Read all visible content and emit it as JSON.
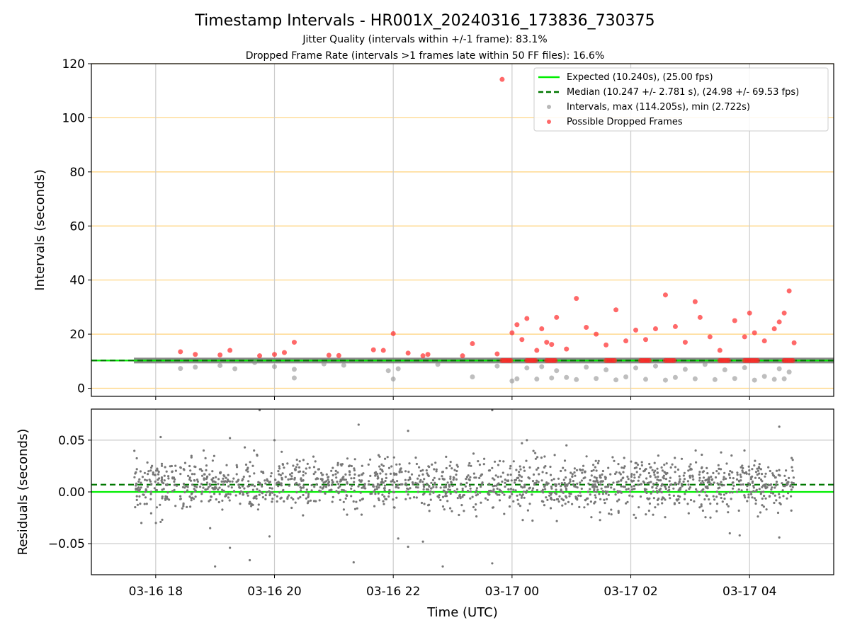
{
  "chart_data": [
    {
      "type": "scatter",
      "panel": "intervals",
      "title": "Timestamp Intervals - HR001X_20240316_173836_730375",
      "subtitle_lines": [
        "Jitter Quality (intervals within +/-1 frame): 83.1%",
        "Dropped Frame Rate (intervals >1 frames late within 50 FF files): 16.6%"
      ],
      "ylabel": "Intervals (seconds)",
      "xlabel": "",
      "ylim": [
        -3,
        120
      ],
      "xlim": [
        "2024-03-16 16:55",
        "2024-03-17 05:25"
      ],
      "yticks": [
        0,
        20,
        40,
        60,
        80,
        100,
        120
      ],
      "xticks": [
        "2024-03-16 18:00",
        "2024-03-16 20:00",
        "2024-03-16 22:00",
        "2024-03-17 00:00",
        "2024-03-17 02:00",
        "2024-03-17 04:00"
      ],
      "grid": "x all, y at 0/20/40/60/80/100/120 (orange)",
      "legend_position": "top-right",
      "legend": [
        "Expected (10.240s), (25.00 fps)",
        "Median (10.247 +/- 2.781 s), (24.98 +/- 69.53 fps)",
        "Intervals, max (114.205s), min (2.722s)",
        "Possible Dropped Frames"
      ],
      "reference_lines": [
        {
          "name": "Expected",
          "y": 10.24,
          "style": "solid",
          "color": "#00ee00"
        },
        {
          "name": "Median",
          "y": 10.247,
          "style": "dashed",
          "color": "#007700"
        }
      ],
      "baseline_band": {
        "y": 10.24,
        "from": "2024-03-16 17:38",
        "to": "2024-03-17 05:40"
      },
      "series": [
        {
          "name": "Intervals",
          "color": "#888888",
          "points": [
            [
              "2024-03-16 18:25",
              7.3
            ],
            [
              "2024-03-16 18:40",
              7.8
            ],
            [
              "2024-03-16 19:05",
              8.4
            ],
            [
              "2024-03-16 19:20",
              7.2
            ],
            [
              "2024-03-16 19:40",
              9.5
            ],
            [
              "2024-03-16 20:00",
              8.0
            ],
            [
              "2024-03-16 20:20",
              7.0
            ],
            [
              "2024-03-16 20:20",
              3.8
            ],
            [
              "2024-03-16 20:50",
              9.0
            ],
            [
              "2024-03-16 21:10",
              8.5
            ],
            [
              "2024-03-16 21:55",
              6.5
            ],
            [
              "2024-03-16 22:00",
              3.4
            ],
            [
              "2024-03-16 22:05",
              7.2
            ],
            [
              "2024-03-16 22:45",
              8.8
            ],
            [
              "2024-03-16 23:20",
              4.2
            ],
            [
              "2024-03-16 23:45",
              8.2
            ],
            [
              "2024-03-17 00:00",
              2.7
            ],
            [
              "2024-03-17 00:05",
              3.5
            ],
            [
              "2024-03-17 00:15",
              7.5
            ],
            [
              "2024-03-17 00:25",
              3.4
            ],
            [
              "2024-03-17 00:30",
              8.0
            ],
            [
              "2024-03-17 00:40",
              3.8
            ],
            [
              "2024-03-17 00:45",
              6.5
            ],
            [
              "2024-03-17 00:55",
              4.0
            ],
            [
              "2024-03-17 01:05",
              3.2
            ],
            [
              "2024-03-17 01:15",
              7.8
            ],
            [
              "2024-03-17 01:25",
              3.6
            ],
            [
              "2024-03-17 01:35",
              6.8
            ],
            [
              "2024-03-17 01:45",
              3.1
            ],
            [
              "2024-03-17 01:55",
              4.2
            ],
            [
              "2024-03-17 02:05",
              7.5
            ],
            [
              "2024-03-17 02:15",
              3.3
            ],
            [
              "2024-03-17 02:25",
              8.2
            ],
            [
              "2024-03-17 02:35",
              3.0
            ],
            [
              "2024-03-17 02:45",
              4.0
            ],
            [
              "2024-03-17 02:55",
              7.0
            ],
            [
              "2024-03-17 03:05",
              3.5
            ],
            [
              "2024-03-17 03:15",
              8.8
            ],
            [
              "2024-03-17 03:25",
              3.2
            ],
            [
              "2024-03-17 03:35",
              6.8
            ],
            [
              "2024-03-17 03:45",
              3.6
            ],
            [
              "2024-03-17 03:55",
              7.6
            ],
            [
              "2024-03-17 04:05",
              3.0
            ],
            [
              "2024-03-17 04:15",
              4.4
            ],
            [
              "2024-03-17 04:25",
              3.3
            ],
            [
              "2024-03-17 04:30",
              7.2
            ],
            [
              "2024-03-17 04:35",
              3.5
            ],
            [
              "2024-03-17 04:40",
              6.0
            ]
          ]
        },
        {
          "name": "Possible Dropped Frames",
          "color": "#ff2a2a",
          "points": [
            [
              "2024-03-16 18:25",
              13.5
            ],
            [
              "2024-03-16 18:40",
              12.5
            ],
            [
              "2024-03-16 19:05",
              12.3
            ],
            [
              "2024-03-16 19:15",
              14.0
            ],
            [
              "2024-03-16 19:45",
              12.0
            ],
            [
              "2024-03-16 20:00",
              12.5
            ],
            [
              "2024-03-16 20:10",
              13.2
            ],
            [
              "2024-03-16 20:20",
              17.0
            ],
            [
              "2024-03-16 20:55",
              12.2
            ],
            [
              "2024-03-16 21:05",
              12.1
            ],
            [
              "2024-03-16 21:40",
              14.2
            ],
            [
              "2024-03-16 21:50",
              14.0
            ],
            [
              "2024-03-16 22:00",
              20.2
            ],
            [
              "2024-03-16 22:15",
              13.0
            ],
            [
              "2024-03-16 22:30",
              12.0
            ],
            [
              "2024-03-16 22:35",
              12.5
            ],
            [
              "2024-03-16 23:10",
              12.0
            ],
            [
              "2024-03-16 23:20",
              16.5
            ],
            [
              "2024-03-16 23:45",
              12.7
            ],
            [
              "2024-03-16 23:50",
              114.2
            ],
            [
              "2024-03-17 00:00",
              20.5
            ],
            [
              "2024-03-17 00:05",
              23.5
            ],
            [
              "2024-03-17 00:10",
              18.0
            ],
            [
              "2024-03-17 00:15",
              25.8
            ],
            [
              "2024-03-17 00:25",
              14.0
            ],
            [
              "2024-03-17 00:30",
              22.0
            ],
            [
              "2024-03-17 00:35",
              17.0
            ],
            [
              "2024-03-17 00:40",
              16.2
            ],
            [
              "2024-03-17 00:45",
              26.2
            ],
            [
              "2024-03-17 00:55",
              14.5
            ],
            [
              "2024-03-17 01:05",
              33.2
            ],
            [
              "2024-03-17 01:15",
              22.5
            ],
            [
              "2024-03-17 01:25",
              20.0
            ],
            [
              "2024-03-17 01:35",
              16.0
            ],
            [
              "2024-03-17 01:45",
              29.0
            ],
            [
              "2024-03-17 01:55",
              17.5
            ],
            [
              "2024-03-17 02:05",
              21.5
            ],
            [
              "2024-03-17 02:15",
              18.0
            ],
            [
              "2024-03-17 02:25",
              22.0
            ],
            [
              "2024-03-17 02:35",
              34.5
            ],
            [
              "2024-03-17 02:45",
              22.8
            ],
            [
              "2024-03-17 02:55",
              17.0
            ],
            [
              "2024-03-17 03:05",
              32.0
            ],
            [
              "2024-03-17 03:10",
              26.2
            ],
            [
              "2024-03-17 03:20",
              19.0
            ],
            [
              "2024-03-17 03:30",
              14.0
            ],
            [
              "2024-03-17 03:45",
              25.0
            ],
            [
              "2024-03-17 03:55",
              19.0
            ],
            [
              "2024-03-17 04:00",
              27.8
            ],
            [
              "2024-03-17 04:05",
              20.5
            ],
            [
              "2024-03-17 04:15",
              17.5
            ],
            [
              "2024-03-17 04:25",
              22.0
            ],
            [
              "2024-03-17 04:30",
              24.5
            ],
            [
              "2024-03-17 04:35",
              27.8
            ],
            [
              "2024-03-17 04:40",
              36.0
            ],
            [
              "2024-03-17 04:45",
              16.8
            ]
          ],
          "clusters_at_y": 10.24,
          "cluster_spans": [
            [
              "2024-03-16 23:50",
              "2024-03-17 00:00"
            ],
            [
              "2024-03-17 00:15",
              "2024-03-17 00:25"
            ],
            [
              "2024-03-17 00:35",
              "2024-03-17 00:45"
            ],
            [
              "2024-03-17 01:35",
              "2024-03-17 01:45"
            ],
            [
              "2024-03-17 02:10",
              "2024-03-17 02:20"
            ],
            [
              "2024-03-17 02:35",
              "2024-03-17 02:45"
            ],
            [
              "2024-03-17 03:30",
              "2024-03-17 03:40"
            ],
            [
              "2024-03-17 03:55",
              "2024-03-17 04:10"
            ],
            [
              "2024-03-17 04:35",
              "2024-03-17 04:45"
            ]
          ]
        }
      ]
    },
    {
      "type": "scatter",
      "panel": "residuals",
      "title": "",
      "xlabel": "Time (UTC)",
      "ylabel": "Residuals (seconds)",
      "ylim": [
        -0.08,
        0.08
      ],
      "yticks": [
        0.05,
        0.0,
        -0.05
      ],
      "ytick_labels": [
        "0.05",
        "0.00",
        "−0.05"
      ],
      "xlim": [
        "2024-03-16 16:55",
        "2024-03-17 05:25"
      ],
      "xtick_labels": [
        "03-16 18",
        "03-16 20",
        "03-16 22",
        "03-17 00",
        "03-17 02",
        "03-17 04"
      ],
      "grid": "x and y",
      "reference_lines": [
        {
          "name": "Expected",
          "y": 0.0,
          "style": "solid",
          "color": "#00ee00"
        },
        {
          "name": "Median",
          "y": 0.007,
          "style": "dashed",
          "color": "#007700"
        }
      ],
      "series": [
        {
          "name": "Residuals",
          "color": "#777777",
          "x_range": [
            "2024-03-16 17:38",
            "2024-03-17 04:45"
          ],
          "typical_range": [
            -0.02,
            0.035
          ],
          "outliers": [
            [
              "2024-03-16 18:05",
              0.053
            ],
            [
              "2024-03-16 18:05",
              -0.029
            ],
            [
              "2024-03-16 18:55",
              -0.035
            ],
            [
              "2024-03-16 19:00",
              -0.072
            ],
            [
              "2024-03-16 19:15",
              0.052
            ],
            [
              "2024-03-16 19:15",
              -0.054
            ],
            [
              "2024-03-16 19:30",
              0.043
            ],
            [
              "2024-03-16 19:35",
              -0.066
            ],
            [
              "2024-03-16 19:45",
              0.079
            ],
            [
              "2024-03-16 19:55",
              -0.043
            ],
            [
              "2024-03-16 20:00",
              0.05
            ],
            [
              "2024-03-16 21:20",
              -0.068
            ],
            [
              "2024-03-16 21:25",
              0.065
            ],
            [
              "2024-03-16 22:05",
              -0.045
            ],
            [
              "2024-03-16 22:15",
              -0.053
            ],
            [
              "2024-03-16 22:15",
              0.059
            ],
            [
              "2024-03-16 22:30",
              -0.048
            ],
            [
              "2024-03-16 22:50",
              -0.072
            ],
            [
              "2024-03-16 23:40",
              -0.069
            ],
            [
              "2024-03-16 23:40",
              0.079
            ],
            [
              "2024-03-17 00:10",
              0.047
            ],
            [
              "2024-03-17 00:15",
              0.05
            ],
            [
              "2024-03-17 00:55",
              0.045
            ],
            [
              "2024-03-17 02:05",
              -0.025
            ],
            [
              "2024-03-17 03:40",
              -0.04
            ],
            [
              "2024-03-17 03:50",
              -0.042
            ],
            [
              "2024-03-17 04:30",
              0.063
            ],
            [
              "2024-03-17 04:30",
              -0.044
            ]
          ]
        }
      ]
    }
  ]
}
